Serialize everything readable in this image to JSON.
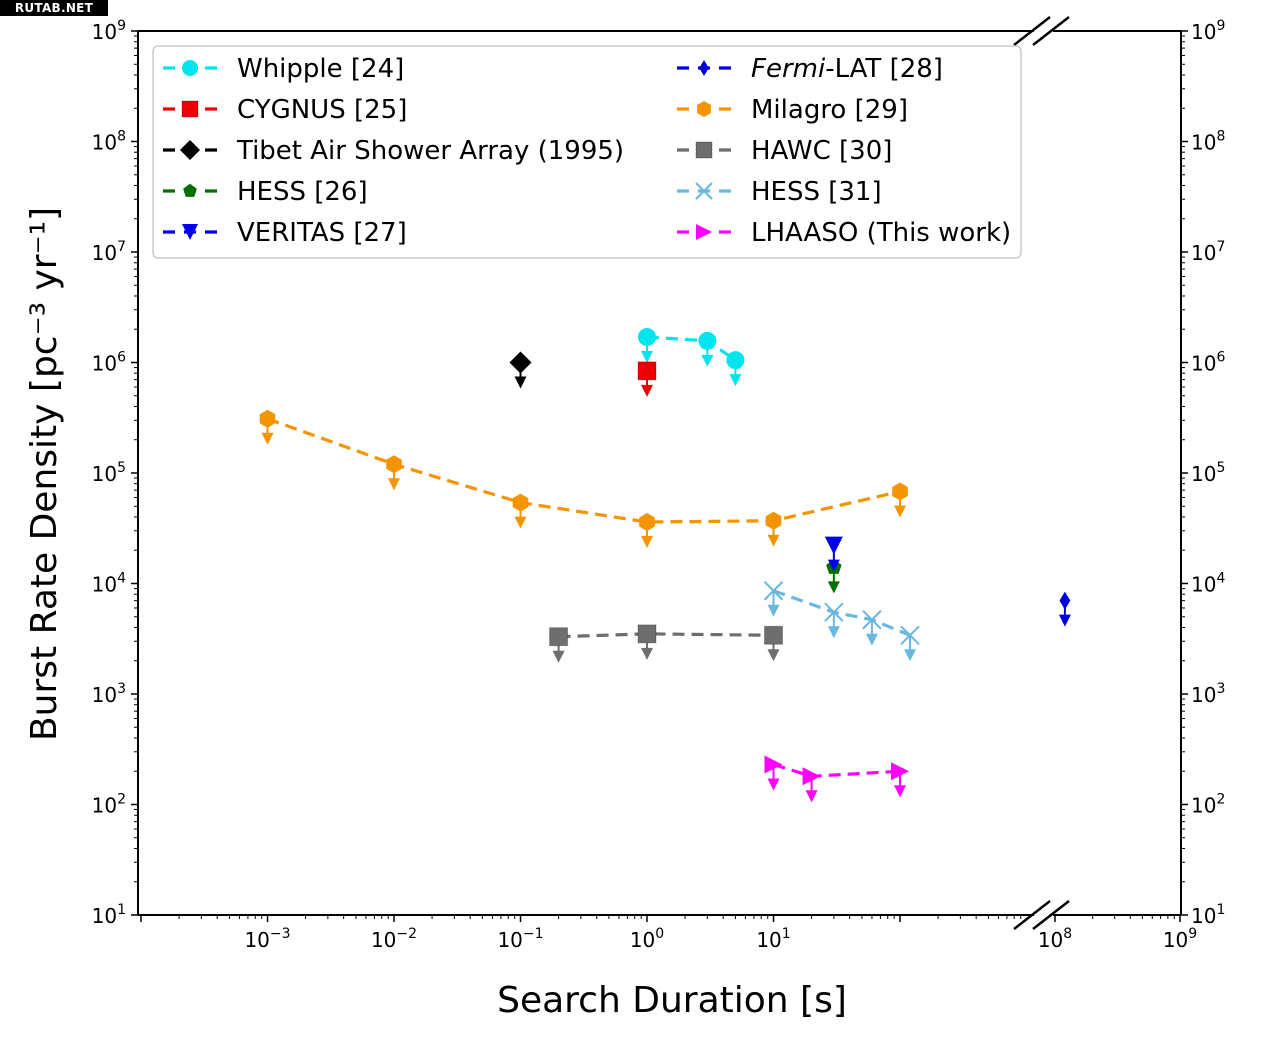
{
  "watermark": "RUTAB.NET",
  "chart_data": {
    "type": "scatter",
    "title": "",
    "xlabel": "Search Duration [s]",
    "ylabel": "Burst Rate Density [pc⁻³ yr⁻¹]",
    "xscale": "log",
    "yscale": "log",
    "xlim_segments": [
      [
        0.0001,
        300
      ],
      [
        30000000,
        1000000000
      ]
    ],
    "x_axis_break": true,
    "ylim": [
      10,
      1000000000
    ],
    "xticks": [
      {
        "value": 0.001,
        "base": "10",
        "exp": "−3"
      },
      {
        "value": 0.01,
        "base": "10",
        "exp": "−2"
      },
      {
        "value": 0.1,
        "base": "10",
        "exp": "−1"
      },
      {
        "value": 1,
        "base": "10",
        "exp": "0"
      },
      {
        "value": 10,
        "base": "10",
        "exp": "1"
      },
      {
        "value": 100000000,
        "base": "10",
        "exp": "8"
      },
      {
        "value": 1000000000,
        "base": "10",
        "exp": "9"
      }
    ],
    "yticks": [
      {
        "value": 10,
        "base": "10",
        "exp": "1"
      },
      {
        "value": 100,
        "base": "10",
        "exp": "2"
      },
      {
        "value": 1000,
        "base": "10",
        "exp": "3"
      },
      {
        "value": 10000,
        "base": "10",
        "exp": "4"
      },
      {
        "value": 100000,
        "base": "10",
        "exp": "5"
      },
      {
        "value": 1000000,
        "base": "10",
        "exp": "6"
      },
      {
        "value": 10000000,
        "base": "10",
        "exp": "7"
      },
      {
        "value": 100000000,
        "base": "10",
        "exp": "8"
      },
      {
        "value": 1000000000,
        "base": "10",
        "exp": "9"
      }
    ],
    "grid": false,
    "legend_position": "top",
    "legend_columns": 2,
    "upper_limits": true,
    "series": [
      {
        "name": "Whipple [24]",
        "color": "#00e5ee",
        "marker": "circle",
        "x": [
          1,
          3,
          5
        ],
        "y": [
          1700000,
          1570000,
          1050000
        ]
      },
      {
        "name": "CYGNUS [25]",
        "color": "#ee0000",
        "marker": "square",
        "x": [
          1
        ],
        "y": [
          840000
        ]
      },
      {
        "name": "Tibet Air Shower Array (1995)",
        "color": "#000000",
        "marker": "diamond",
        "x": [
          0.1
        ],
        "y": [
          1000000
        ]
      },
      {
        "name": "HESS [26]",
        "color": "#007000",
        "marker": "pentagon",
        "x": [
          30
        ],
        "y": [
          14000
        ]
      },
      {
        "name": "VERITAS [27]",
        "color": "#0000ee",
        "marker": "triangle-down",
        "x": [
          30
        ],
        "y": [
          22000
        ]
      },
      {
        "name": "Fermi-LAT [28]",
        "name_italic_part": "Fermi",
        "name_rest": "-LAT [28]",
        "color": "#0000dd",
        "marker": "thin-diamond",
        "x": [
          120000000
        ],
        "y": [
          7000
        ]
      },
      {
        "name": "Milagro [29]",
        "color": "#f39400",
        "marker": "hexagon",
        "x": [
          0.001,
          0.01,
          0.1,
          1,
          10,
          100
        ],
        "y": [
          310000,
          120000,
          54000,
          36000,
          37000,
          68000
        ]
      },
      {
        "name": "HAWC [30]",
        "color": "#6e6e6e",
        "marker": "square",
        "x": [
          0.2,
          1,
          10
        ],
        "y": [
          3300,
          3500,
          3400
        ]
      },
      {
        "name": "HESS [31]",
        "color": "#6ab8e0",
        "marker": "x",
        "x": [
          10,
          30,
          60,
          120
        ],
        "y": [
          8600,
          5500,
          4700,
          3400
        ]
      },
      {
        "name": "LHAASO (This work)",
        "color": "#ff00ff",
        "marker": "triangle-right",
        "x": [
          10,
          20,
          100
        ],
        "y": [
          230,
          180,
          200
        ]
      }
    ]
  }
}
